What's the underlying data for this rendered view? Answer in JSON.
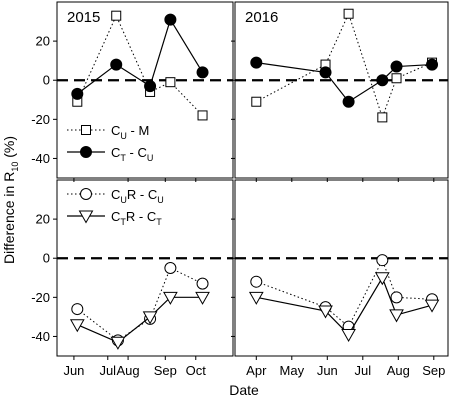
{
  "figure": {
    "ylabel": "Difference in R10 (%)",
    "ylabel_main": "Difference in R",
    "ylabel_sub": "10",
    "ylabel_tail": " (%)",
    "xlabel": "Date"
  },
  "chart_data": [
    {
      "type": "line",
      "panel": "top-left",
      "year_label": "2015",
      "ylim": [
        -50,
        40
      ],
      "yticks": [
        -40,
        -20,
        0,
        20
      ],
      "ytick_labels": [
        "-40",
        "-20",
        "0",
        "20"
      ],
      "xlim": [
        -0.5,
        4.7
      ],
      "x_ticks": [
        0,
        1.6,
        2.7,
        3.6
      ],
      "x_tick_labels": [
        "Jun",
        "Aug",
        "Sep",
        "Oct"
      ],
      "reference_line": 0,
      "series": [
        {
          "name": "CU - M",
          "marker": "open-square",
          "line": "dotted",
          "x": [
            0.1,
            1.25,
            2.25,
            2.85,
            3.8
          ],
          "values": [
            -11,
            33,
            -6,
            -1,
            -18
          ]
        },
        {
          "name": "CT - CU",
          "marker": "filled-circle",
          "line": "solid",
          "x": [
            0.1,
            1.25,
            2.25,
            2.85,
            3.8
          ],
          "values": [
            -7,
            8,
            -3,
            31,
            4
          ]
        }
      ],
      "legend": {
        "placement": "bottom-left",
        "entries": [
          {
            "main": "C",
            "sub": "U",
            "tail": " - M",
            "series": 0
          },
          {
            "main": "C",
            "sub": "T",
            "tail": " - C",
            "sub2": "U",
            "series": 1
          }
        ]
      }
    },
    {
      "type": "line",
      "panel": "top-right",
      "year_label": "2016",
      "ylim": [
        -50,
        40
      ],
      "xlim": [
        -0.6,
        5.4
      ],
      "x_ticks": [
        0,
        1,
        2,
        3,
        4,
        5
      ],
      "x_tick_labels": [
        "Apr",
        "May",
        "Jun",
        "Jul",
        "Aug",
        "Sep"
      ],
      "reference_line": 0,
      "series": [
        {
          "name": "CU - M",
          "marker": "open-square",
          "line": "dotted",
          "x": [
            0,
            1.95,
            2.6,
            3.55,
            3.95,
            4.95
          ],
          "values": [
            -11,
            8,
            34,
            -19,
            1,
            9
          ]
        },
        {
          "name": "CT - CU",
          "marker": "filled-circle",
          "line": "solid",
          "x": [
            0,
            1.95,
            2.6,
            3.55,
            3.95,
            4.95
          ],
          "values": [
            9,
            4,
            -11,
            0,
            7,
            8
          ]
        }
      ]
    },
    {
      "type": "line",
      "panel": "bottom-left",
      "ylim": [
        -50,
        40
      ],
      "yticks": [
        -40,
        -20,
        0,
        20
      ],
      "ytick_labels": [
        "-40",
        "-20",
        "0",
        "20"
      ],
      "xlim": [
        -0.5,
        4.7
      ],
      "x_ticks": [
        0,
        1,
        1.6,
        2.7,
        3.6
      ],
      "x_tick_labels": [
        "Jun",
        "Jul",
        "Aug",
        "Sep",
        "Oct"
      ],
      "reference_line": 0,
      "series": [
        {
          "name": "CUR - CU",
          "marker": "open-circle",
          "line": "dotted",
          "x": [
            0.1,
            1.3,
            2.25,
            2.85,
            3.8
          ],
          "values": [
            -26,
            -42,
            -31,
            -5,
            -13
          ]
        },
        {
          "name": "CTR - CT",
          "marker": "open-triangle",
          "line": "solid",
          "x": [
            0.1,
            1.3,
            2.25,
            2.85,
            3.8
          ],
          "values": [
            -34,
            -43,
            -30,
            -20,
            -20
          ]
        }
      ],
      "legend": {
        "placement": "top-left",
        "entries": [
          {
            "main": "C",
            "sub": "U",
            "tail": "R - C",
            "sub2": "U",
            "series": 0
          },
          {
            "main": "C",
            "sub": "T",
            "tail": "R - C",
            "sub2": "T",
            "series": 1
          }
        ]
      }
    },
    {
      "type": "line",
      "panel": "bottom-right",
      "ylim": [
        -50,
        40
      ],
      "xlim": [
        -0.6,
        5.4
      ],
      "x_ticks": [
        0,
        1,
        2,
        3,
        4,
        5
      ],
      "x_tick_labels": [
        "Apr",
        "May",
        "Jun",
        "Jul",
        "Aug",
        "Sep"
      ],
      "reference_line": 0,
      "series": [
        {
          "name": "CUR - CU",
          "marker": "open-circle",
          "line": "dotted",
          "x": [
            0,
            1.95,
            2.6,
            3.55,
            3.95,
            4.95
          ],
          "values": [
            -12,
            -25,
            -35,
            -1,
            -20,
            -21
          ]
        },
        {
          "name": "CTR - CT",
          "marker": "open-triangle",
          "line": "solid",
          "x": [
            0,
            1.95,
            2.6,
            3.55,
            3.95,
            4.95
          ],
          "values": [
            -20,
            -27,
            -39,
            -10,
            -29,
            -24
          ]
        }
      ]
    }
  ]
}
